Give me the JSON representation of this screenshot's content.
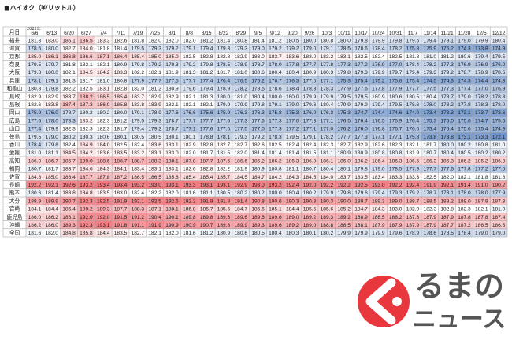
{
  "title": "■ハイオク（¥/リットル）",
  "table": {
    "year": "2022年",
    "header": [
      "月日",
      "6/6",
      "6/13",
      "6/20",
      "6/27",
      "7/4",
      "7/11",
      "7/19",
      "7/25",
      "8/1",
      "8/8",
      "8/15",
      "8/22",
      "8/29",
      "9/5",
      "9/12",
      "9/20",
      "9/26",
      "10/3",
      "10/11",
      "10/17",
      "10/24",
      "10/31",
      "11/7",
      "11/14",
      "11/21",
      "11/28",
      "12/5",
      "12/12"
    ],
    "rows": [
      {
        "label": "福井",
        "values": [
          "181.3",
          "183.0",
          "185.1",
          "186.5",
          "183.3",
          "182.6",
          "181.8",
          "182.0",
          "182.0",
          "182.0",
          "181.2",
          "181.4",
          "180.8",
          "181.4",
          "181.2",
          "180.5",
          "180.0",
          "180.8",
          "180.0",
          "179.8",
          "179.9",
          "179.8",
          "179.5",
          "179.4",
          "179.1",
          "179.0",
          "179.9",
          "180.4"
        ]
      },
      {
        "label": "滋賀",
        "values": [
          "178.6",
          "180.0",
          "182.7",
          "184.0",
          "181.8",
          "181.4",
          "179.5",
          "179.3",
          "179.2",
          "179.1",
          "179.4",
          "179.3",
          "179.3",
          "179.0",
          "179.2",
          "179.2",
          "179.0",
          "179.1",
          "178.5",
          "178.6",
          "178.4",
          "178.2",
          "175.8",
          "175.9",
          "175.2",
          "174.3",
          "173.8",
          "174.9"
        ]
      },
      {
        "label": "京都",
        "values": [
          "185.0",
          "186.1",
          "186.8",
          "186.6",
          "187.1",
          "186.4",
          "185.4",
          "185.0",
          "185.0",
          "182.5",
          "182.8",
          "182.8",
          "182.9",
          "183.0",
          "183.7",
          "183.6",
          "183.0",
          "183.2",
          "183.1",
          "182.5",
          "182.4",
          "182.5",
          "181.8",
          "181.0",
          "181.2",
          "180.6",
          "179.4",
          "179.5"
        ]
      },
      {
        "label": "奈良",
        "values": [
          "179.5",
          "179.7",
          "181.8",
          "182.1",
          "182.1",
          "180.9",
          "179.8",
          "179.2",
          "179.3",
          "179.2",
          "179.8",
          "178.5",
          "178.9",
          "178.7",
          "178.0",
          "177.8",
          "177.7",
          "177.8",
          "177.3",
          "177.2",
          "176.9",
          "177.0",
          "178.4",
          "178.2",
          "177.3",
          "176.9",
          "176.9",
          "176.0"
        ]
      },
      {
        "label": "大阪",
        "values": [
          "179.8",
          "180.0",
          "182.1",
          "184.5",
          "184.2",
          "183.3",
          "182.2",
          "182.1",
          "181.9",
          "181.3",
          "181.2",
          "181.7",
          "181.0",
          "180.6",
          "180.4",
          "180.4",
          "180.9",
          "180.3",
          "179.8",
          "179.3",
          "179.9",
          "179.7",
          "179.4",
          "179.3",
          "179.2",
          "178.7",
          "178.9",
          "178.5"
        ]
      },
      {
        "label": "兵庫",
        "values": [
          "178.1",
          "179.1",
          "181.3",
          "181.7",
          "181.0",
          "180.8",
          "177.9",
          "177.7",
          "177.5",
          "177.7",
          "177.4",
          "176.4",
          "176.5",
          "176.2",
          "176.7",
          "176.3",
          "177.6",
          "177.1",
          "175.3",
          "175.4",
          "175.2",
          "175.6",
          "175.4",
          "174.5",
          "174.3",
          "174.3",
          "174.4",
          "174.8"
        ]
      },
      {
        "label": "和歌山",
        "values": [
          "180.8",
          "179.8",
          "182.2",
          "182.5",
          "183.1",
          "182.8",
          "182.0",
          "181.2",
          "180.9",
          "179.6",
          "179.4",
          "178.9",
          "178.2",
          "178.5",
          "178.6",
          "178.4",
          "178.3",
          "178.3",
          "177.9",
          "177.6",
          "177.8",
          "177.9",
          "177.7",
          "177.5",
          "177.3",
          "177.4",
          "177.0",
          "176.9"
        ]
      },
      {
        "label": "鳥取",
        "values": [
          "182.9",
          "182.9",
          "183.7",
          "188.2",
          "186.5",
          "185.4",
          "183.7",
          "182.9",
          "182.9",
          "182.1",
          "181.3",
          "180.0",
          "181.0",
          "180.4",
          "180.0",
          "180.0",
          "179.9",
          "179.9",
          "179.5",
          "179.5",
          "180.9",
          "180.6",
          "180.5",
          "180.4",
          "178.7",
          "179.0",
          "178.2",
          "178.3"
        ]
      },
      {
        "label": "島根",
        "values": [
          "182.6",
          "183.8",
          "187.4",
          "187.3",
          "186.9",
          "185.8",
          "183.8",
          "183.9",
          "182.1",
          "182.1",
          "182.1",
          "179.9",
          "179.9",
          "179.8",
          "179.1",
          "179.0",
          "179.6",
          "180.4",
          "179.9",
          "179.9",
          "179.4",
          "179.5",
          "178.6",
          "178.0",
          "178.2",
          "177.8",
          "178.3",
          "178.0"
        ]
      },
      {
        "label": "岡山",
        "values": [
          "175.9",
          "176.0",
          "178.7",
          "180.2",
          "180.2",
          "180.0",
          "179.1",
          "178.9",
          "177.6",
          "176.6",
          "175.6",
          "175.9",
          "176.3",
          "176.3",
          "175.8",
          "175.3",
          "176.0",
          "176.3",
          "175.3",
          "174.7",
          "174.4",
          "174.6",
          "174.0",
          "173.4",
          "173.3",
          "173.1",
          "173.7",
          "173.6"
        ]
      },
      {
        "label": "広島",
        "values": [
          "177.5",
          "178.0",
          "178.3",
          "183.2",
          "182.3",
          "181.2",
          "179.5",
          "179.3",
          "178.7",
          "177.7",
          "177.7",
          "177.5",
          "177.3",
          "177.6",
          "177.3",
          "177.0",
          "177.3",
          "177.1",
          "176.5",
          "176.4",
          "176.5",
          "176.9",
          "176.4",
          "175.3",
          "175.0",
          "175.0",
          "174.7",
          "175.6"
        ]
      },
      {
        "label": "山口",
        "values": [
          "177.4",
          "179.9",
          "182.3",
          "182.3",
          "182.3",
          "181.7",
          "179.4",
          "179.2",
          "178.7",
          "177.1",
          "177.6",
          "177.6",
          "177.5",
          "177.0",
          "177.3",
          "177.2",
          "177.1",
          "177.0",
          "176.2",
          "176.0",
          "176.8",
          "176.7",
          "176.6",
          "175.4",
          "175.4",
          "175.6",
          "175.4",
          "174.9"
        ]
      },
      {
        "label": "徳島",
        "values": [
          "179.5",
          "179.0",
          "180.2",
          "180.3",
          "180.6",
          "180.1",
          "180.5",
          "180.5",
          "180.1",
          "180.1",
          "178.8",
          "178.1",
          "179.3",
          "179.2",
          "178.3",
          "179.5",
          "179.1",
          "178.2",
          "177.7",
          "177.3",
          "177.1",
          "177.1",
          "175.8",
          "173.8",
          "173.8",
          "173.1",
          "173.3",
          "172.1"
        ]
      },
      {
        "label": "香川",
        "values": [
          "178.4",
          "179.8",
          "182.4",
          "184.9",
          "184.0",
          "182.5",
          "182.4",
          "183.6",
          "183.1",
          "182.9",
          "182.8",
          "182.7",
          "182.7",
          "182.6",
          "182.5",
          "182.4",
          "182.4",
          "182.3",
          "182.7",
          "182.9",
          "182.6",
          "182.3",
          "182.1",
          "181.7",
          "180.0",
          "180.2",
          "180.8",
          "181.0"
        ]
      },
      {
        "label": "愛媛",
        "values": [
          "181.0",
          "181.1",
          "184.5",
          "184.2",
          "183.6",
          "183.5",
          "183.2",
          "183.1",
          "183.0",
          "182.0",
          "181.7",
          "181.5",
          "182.0",
          "181.4",
          "181.4",
          "181.4",
          "181.5",
          "181.1",
          "180.9",
          "180.9",
          "180.8",
          "180.8",
          "181.9",
          "180.7",
          "180.4",
          "180.5",
          "180.2",
          "180.2"
        ]
      },
      {
        "label": "高知",
        "values": [
          "186.0",
          "186.7",
          "186.7",
          "189.0",
          "188.6",
          "188.7",
          "188.7",
          "188.3",
          "188.1",
          "187.8",
          "187.7",
          "187.6",
          "186.6",
          "186.2",
          "186.2",
          "186.3",
          "186.0",
          "186.1",
          "186.0",
          "186.2",
          "186.4",
          "186.3",
          "186.5",
          "186.3",
          "186.3",
          "186.2",
          "186.2",
          "186.3"
        ]
      },
      {
        "label": "福岡",
        "values": [
          "180.7",
          "181.7",
          "183.7",
          "184.6",
          "184.3",
          "184.1",
          "183.4",
          "183.1",
          "183.1",
          "182.6",
          "182.8",
          "182.2",
          "181.9",
          "180.9",
          "180.8",
          "181.1",
          "180.7",
          "180.4",
          "180.1",
          "179.8",
          "179.0",
          "178.5",
          "177.9",
          "177.7",
          "177.6",
          "177.8",
          "177.2",
          "177.0"
        ]
      },
      {
        "label": "佐賀",
        "values": [
          "184.8",
          "185.0",
          "186.4",
          "187.7",
          "187.8",
          "187.2",
          "186.5",
          "186.5",
          "185.8",
          "185.4",
          "185.4",
          "185.7",
          "184.5",
          "184.7",
          "184.2",
          "184.3",
          "184.5",
          "184.0",
          "183.7",
          "183.5",
          "183.4",
          "183.3",
          "183.3",
          "182.5",
          "182.0",
          "182.1",
          "181.8",
          "181.6"
        ]
      },
      {
        "label": "長崎",
        "values": [
          "192.2",
          "192.1",
          "192.6",
          "193.2",
          "193.4",
          "193.4",
          "193.2",
          "193.0",
          "193.1",
          "193.3",
          "193.1",
          "193.1",
          "192.9",
          "193.0",
          "193.2",
          "192.4",
          "192.0",
          "192.2",
          "192.2",
          "192.5",
          "193.0",
          "192.2",
          "192.4",
          "191.9",
          "192.1",
          "191.4",
          "191.0",
          "190.2"
        ]
      },
      {
        "label": "熊本",
        "values": [
          "180.6",
          "181.4",
          "183.8",
          "184.8",
          "183.5",
          "183.0",
          "182.4",
          "182.2",
          "182.0",
          "181.6",
          "181.1",
          "180.5",
          "180.2",
          "180.2",
          "180.0",
          "180.4",
          "180.2",
          "179.9",
          "179.8",
          "179.6",
          "179.4",
          "179.3",
          "179.2",
          "178.7",
          "178.1",
          "178.0",
          "178.0",
          "177.9"
        ]
      },
      {
        "label": "大分",
        "values": [
          "188.9",
          "189.9",
          "190.7",
          "192.3",
          "192.5",
          "191.9",
          "192.1",
          "192.5",
          "192.6",
          "192.2",
          "191.9",
          "191.8",
          "191.4",
          "190.8",
          "190.6",
          "190.3",
          "190.3",
          "190.3",
          "190.0",
          "189.7",
          "189.3",
          "189.0",
          "188.7",
          "188.5",
          "188.2",
          "188.0",
          "187.9",
          "187.3"
        ]
      },
      {
        "label": "宮崎",
        "values": [
          "184.1",
          "184.4",
          "186.4",
          "189.2",
          "189.3",
          "187.7",
          "188.3",
          "187.1",
          "188.1",
          "186.8",
          "185.7",
          "185.5",
          "184.7",
          "185.6",
          "185.1",
          "184.4",
          "185.5",
          "185.6",
          "185.2",
          "184.7",
          "184.3",
          "183.0",
          "182.9",
          "182.3",
          "182.8",
          "182.3",
          "182.1",
          "181.0"
        ]
      },
      {
        "label": "鹿児島",
        "values": [
          "186.0",
          "186.2",
          "188.1",
          "192.0",
          "192.0",
          "191.5",
          "191.2",
          "190.4",
          "190.1",
          "189.8",
          "189.8",
          "189.8",
          "189.6",
          "189.6",
          "189.6",
          "189.0",
          "189.2",
          "189.3",
          "189.2",
          "188.9",
          "188.5",
          "188.2",
          "187.8",
          "187.9",
          "187.9",
          "187.8",
          "187.8",
          "187.4"
        ]
      },
      {
        "label": "沖縄",
        "values": [
          "186.2",
          "186.0",
          "189.3",
          "192.3",
          "193.1",
          "191.8",
          "191.1",
          "191.9",
          "190.9",
          "190.9",
          "190.7",
          "189.8",
          "189.9",
          "189.3",
          "189.6",
          "189.2",
          "189.0",
          "188.8",
          "188.5",
          "188.1",
          "187.9",
          "187.9",
          "187.9",
          "187.9",
          "187.7",
          "187.2",
          "186.5",
          "186.5"
        ]
      },
      {
        "label": "全国",
        "values": [
          "181.6",
          "182.0",
          "184.8",
          "185.8",
          "184.4",
          "183.5",
          "182.7",
          "182.1",
          "182.0",
          "181.6",
          "181.2",
          "180.9",
          "180.6",
          "180.5",
          "180.4",
          "180.3",
          "180.1",
          "180.2",
          "179.9",
          "179.9",
          "179.9",
          "179.6",
          "178.9",
          "178.6",
          "178.5",
          "178.4",
          "179.0",
          "179.0"
        ]
      }
    ]
  },
  "logo": {
    "text1": "るまの",
    "text2": "ニュース"
  }
}
